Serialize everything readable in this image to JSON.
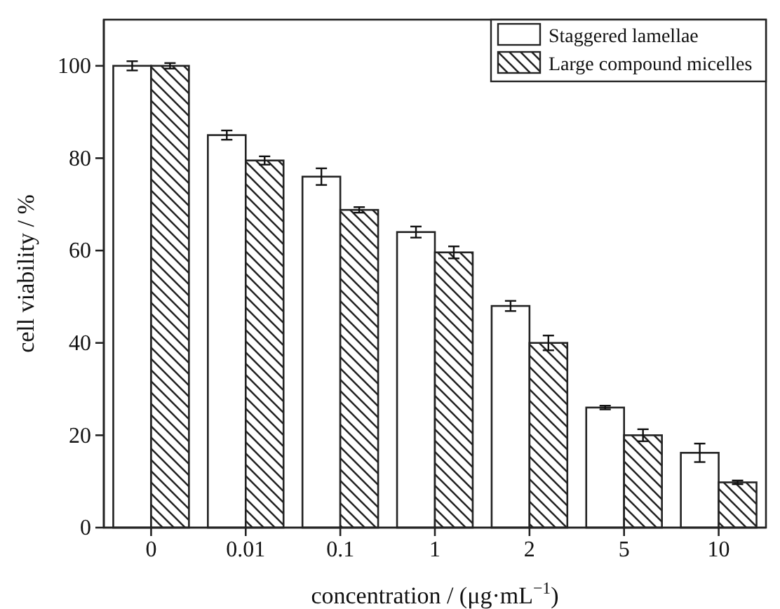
{
  "chart_data": {
    "type": "bar",
    "xlabel": "concentration / (μg·mL$^{−1}$)",
    "ylabel": "cell viability / %",
    "categories": [
      "0",
      "0.01",
      "0.1",
      "1",
      "2",
      "5",
      "10"
    ],
    "series": [
      {
        "name": "Staggered lamellae",
        "color": "#ffffff",
        "values": [
          100,
          85,
          76,
          64,
          48,
          26,
          16.2
        ],
        "errors": [
          1,
          1,
          1.8,
          1.2,
          1.1,
          0.4,
          2
        ]
      },
      {
        "name": "Large compound micelles",
        "color": "#ffffff",
        "values": [
          100,
          79.5,
          68.8,
          59.6,
          40,
          20,
          9.8
        ],
        "errors": [
          0.6,
          0.9,
          0.6,
          1.3,
          1.6,
          1.3,
          0.4
        ]
      }
    ],
    "ylim": [
      0,
      110
    ],
    "yticks": [
      0,
      20,
      40,
      60,
      80,
      100
    ],
    "legend": "top right",
    "grid": false
  }
}
